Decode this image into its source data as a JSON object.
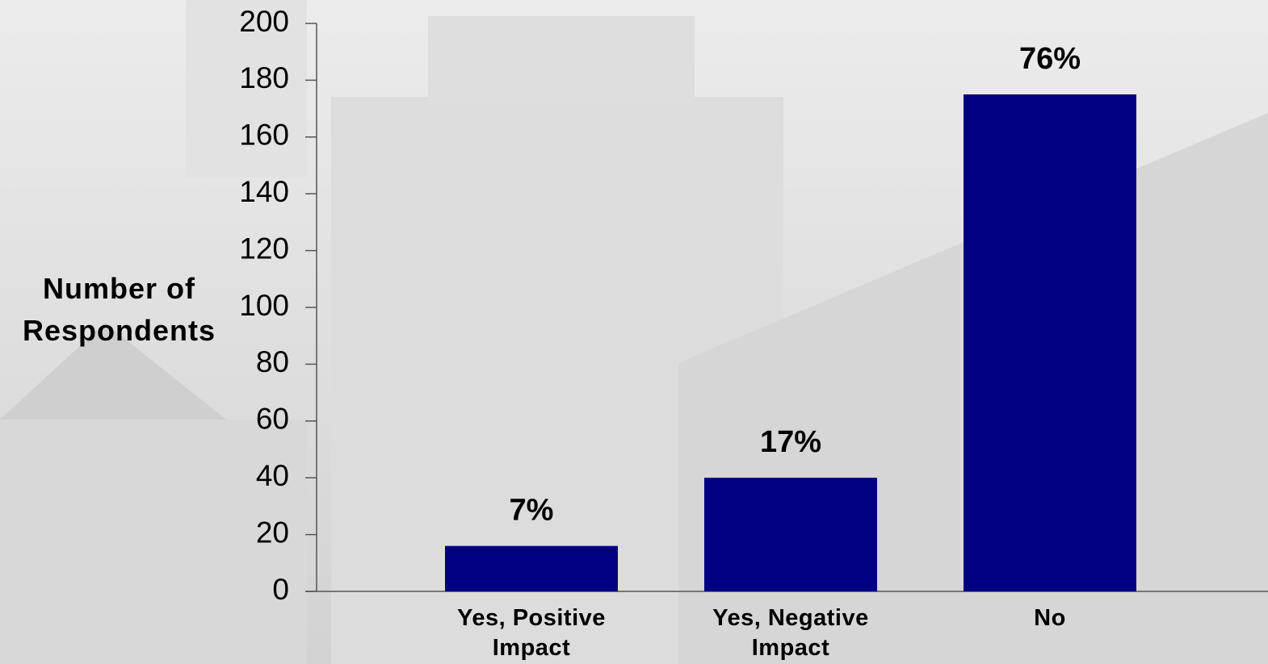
{
  "chart_data": {
    "type": "bar",
    "y_label": "Number of Respondents",
    "categories": [
      "Yes,  Positive Impact",
      "Yes, Negative Impact",
      "No"
    ],
    "values": [
      16,
      40,
      175
    ],
    "annotations": [
      "7%",
      "17%",
      "76%"
    ],
    "color": "#000080",
    "ylim": [
      0,
      200
    ],
    "yticks": [
      0,
      20,
      40,
      60,
      80,
      100,
      120,
      140,
      160,
      180,
      200
    ],
    "grid": false
  }
}
